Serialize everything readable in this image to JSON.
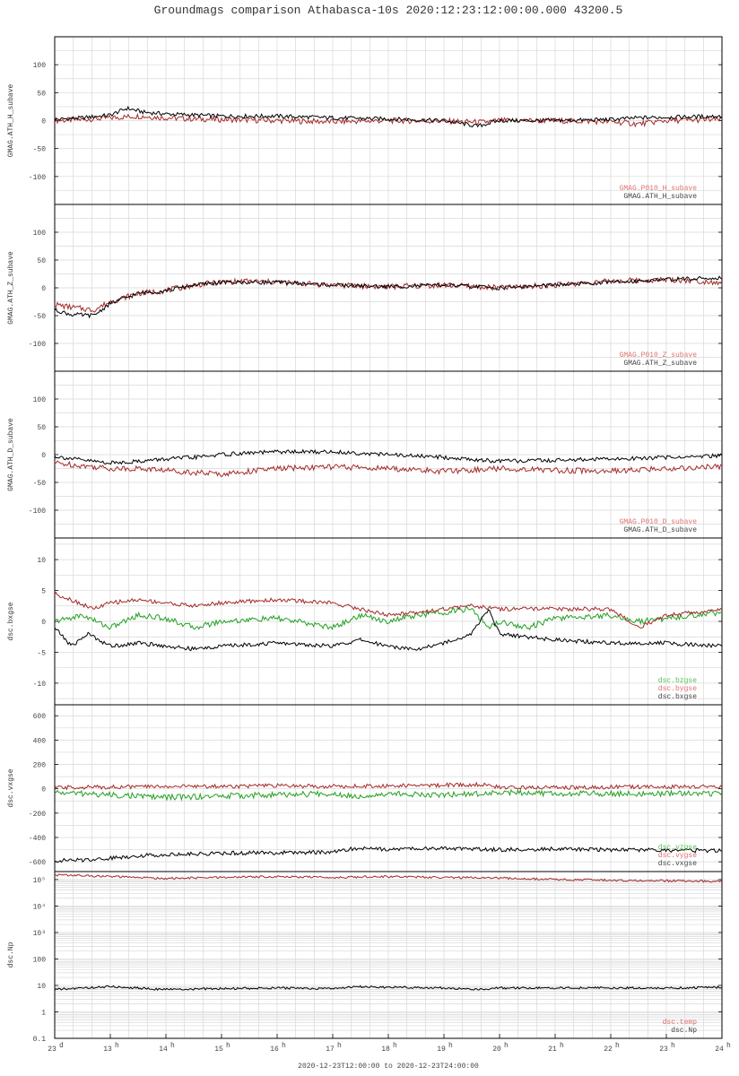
{
  "figure": {
    "title": "Groundmags comparison Athabasca-10s 2020:12:23:12:00:00.000 43200.5",
    "x_range_label": "2020-12-23T12:00:00 to 2020-12-23T24:00:00",
    "x_tick_labels": [
      "23",
      "13",
      "14",
      "15",
      "16",
      "17",
      "18",
      "19",
      "20",
      "21",
      "22",
      "23",
      "24"
    ],
    "x_tick_superscripts": [
      "d",
      "h",
      "h",
      "h",
      "h",
      "h",
      "h",
      "h",
      "h",
      "h",
      "h",
      "h",
      "h"
    ]
  },
  "colors": {
    "black": "#000000",
    "red": "#a52a2a",
    "green": "#22a022",
    "legend_red": "#e07070",
    "legend_green": "#55c055",
    "legend_gray": "#444444",
    "grid": "#d8d8d8"
  },
  "chart_data": [
    {
      "type": "line",
      "ylabel": "GMAG.ATH_H_subave",
      "x_hours": [
        12,
        24
      ],
      "ylim": [
        -150,
        150
      ],
      "yticks": [
        100,
        50,
        0,
        -50,
        -100
      ],
      "ytick_labels": [
        "100",
        "50",
        "0",
        "-50",
        "-100"
      ],
      "series": [
        {
          "name": "GMAG.P010_H_subave",
          "color": "red",
          "x": [
            12,
            12.5,
            13,
            13.5,
            14,
            14.5,
            15,
            16,
            17,
            18,
            19,
            19.7,
            20,
            21,
            22,
            22.5,
            23,
            24
          ],
          "y": [
            0,
            2,
            5,
            8,
            5,
            3,
            2,
            0,
            -2,
            0,
            -1,
            -3,
            0,
            0,
            -2,
            -6,
            0,
            2
          ]
        },
        {
          "name": "GMAG.ATH_H_subave",
          "color": "black",
          "x": [
            12,
            12.5,
            13,
            13.3,
            13.6,
            14,
            14.5,
            15,
            16,
            17,
            18,
            19,
            19.6,
            20,
            21,
            22,
            22.5,
            23,
            24
          ],
          "y": [
            2,
            5,
            10,
            22,
            15,
            12,
            10,
            8,
            8,
            5,
            3,
            0,
            -10,
            0,
            0,
            2,
            5,
            6,
            8
          ]
        }
      ],
      "legend": [
        "GMAG.P010_H_subave",
        "GMAG.ATH_H_subave"
      ]
    },
    {
      "type": "line",
      "ylabel": "GMAG.ATH_Z_subave",
      "x_hours": [
        12,
        24
      ],
      "ylim": [
        -150,
        150
      ],
      "yticks": [
        100,
        50,
        0,
        -50,
        -100
      ],
      "ytick_labels": [
        "100",
        "50",
        "0",
        "-50",
        "-100"
      ],
      "series": [
        {
          "name": "GMAG.P010_Z_subave",
          "color": "red",
          "x": [
            12,
            12.3,
            12.7,
            13,
            13.5,
            14,
            14.5,
            15,
            15.5,
            16,
            17,
            18,
            19,
            20,
            21,
            22,
            23,
            24
          ],
          "y": [
            -30,
            -35,
            -40,
            -25,
            -10,
            -5,
            5,
            10,
            12,
            10,
            5,
            2,
            5,
            0,
            5,
            12,
            15,
            10
          ]
        },
        {
          "name": "GMAG.ATH_Z_subave",
          "color": "black",
          "x": [
            12,
            12.3,
            12.7,
            13,
            13.5,
            14,
            14.5,
            15,
            15.5,
            16,
            17,
            18,
            19,
            20,
            21,
            22,
            23,
            24
          ],
          "y": [
            -40,
            -48,
            -50,
            -28,
            -10,
            -5,
            5,
            10,
            10,
            10,
            5,
            2,
            5,
            0,
            5,
            10,
            15,
            18
          ]
        }
      ],
      "legend": [
        "GMAG.P010_Z_subave",
        "GMAG.ATH_Z_subave"
      ]
    },
    {
      "type": "line",
      "ylabel": "GMAG.ATH_D_subave",
      "x_hours": [
        12,
        24
      ],
      "ylim": [
        -150,
        150
      ],
      "yticks": [
        100,
        50,
        0,
        -50,
        -100
      ],
      "ytick_labels": [
        "100",
        "50",
        "0",
        "-50",
        "-100"
      ],
      "series": [
        {
          "name": "GMAG.P010_D_subave",
          "color": "red",
          "x": [
            12,
            12.5,
            13,
            13.5,
            14,
            14.5,
            15,
            15.5,
            16,
            17,
            18,
            19,
            20,
            21,
            22,
            23,
            24
          ],
          "y": [
            -15,
            -20,
            -25,
            -25,
            -28,
            -32,
            -35,
            -30,
            -25,
            -22,
            -25,
            -30,
            -25,
            -28,
            -30,
            -25,
            -22
          ]
        },
        {
          "name": "GMAG.ATH_D_subave",
          "color": "black",
          "x": [
            12,
            12.5,
            13,
            13.5,
            14,
            14.5,
            15,
            15.5,
            16,
            17,
            18,
            19,
            19.7,
            20,
            21,
            22,
            23,
            24
          ],
          "y": [
            -3,
            -10,
            -15,
            -12,
            -8,
            -5,
            0,
            3,
            5,
            5,
            0,
            -5,
            -10,
            -12,
            -10,
            -8,
            -5,
            -2
          ]
        }
      ],
      "legend": [
        "GMAG.P010_D_subave",
        "GMAG.ATH_D_subave"
      ]
    },
    {
      "type": "line",
      "ylabel": "dsc.bxgse",
      "x_hours": [
        12,
        24
      ],
      "ylim": [
        -13.5,
        13.5
      ],
      "yticks": [
        10,
        5,
        0,
        -5,
        -10
      ],
      "ytick_labels": [
        "10",
        "5",
        "0",
        "-5",
        "-10"
      ],
      "series": [
        {
          "name": "dsc.bzgse",
          "color": "green",
          "x": [
            12,
            12.5,
            13,
            13.5,
            14,
            14.5,
            15,
            16,
            17,
            17.5,
            18,
            18.5,
            19,
            19.5,
            19.8,
            20,
            20.5,
            21,
            22,
            22.5,
            23,
            24
          ],
          "y": [
            0,
            1,
            -1,
            1,
            0.5,
            -1,
            0,
            0.5,
            -1,
            1,
            0,
            1,
            1.5,
            2,
            -1,
            0,
            -1,
            0.5,
            1,
            0,
            0.5,
            1.5
          ]
        },
        {
          "name": "dsc.bygse",
          "color": "red",
          "x": [
            12,
            12.3,
            12.7,
            13,
            13.5,
            14,
            14.5,
            15,
            16,
            17,
            17.5,
            18,
            18.5,
            19,
            19.5,
            20,
            21,
            22,
            22.5,
            23,
            24
          ],
          "y": [
            4.5,
            3.5,
            2,
            3,
            3.5,
            3,
            2.5,
            3,
            3.5,
            3,
            2,
            1,
            1.5,
            2,
            2.5,
            2,
            2,
            2,
            -1,
            1,
            2
          ]
        },
        {
          "name": "dsc.bxgse",
          "color": "black",
          "x": [
            12,
            12.3,
            12.6,
            13,
            13.5,
            14,
            14.5,
            15,
            16,
            17,
            17.5,
            18,
            18.5,
            19,
            19.5,
            19.8,
            20,
            21,
            22,
            23,
            24
          ],
          "y": [
            -1,
            -4,
            -2,
            -4,
            -3.5,
            -4,
            -4.5,
            -4,
            -3.5,
            -4,
            -3,
            -4,
            -4.5,
            -3.5,
            -2,
            2,
            -2,
            -3,
            -3.5,
            -3.5,
            -4
          ]
        }
      ],
      "legend": [
        "dsc.bzgse",
        "dsc.bygse",
        "dsc.bxgse"
      ]
    },
    {
      "type": "line",
      "ylabel": "dsc.vxgse",
      "x_hours": [
        12,
        24
      ],
      "ylim": [
        -680,
        690
      ],
      "yticks": [
        600,
        400,
        200,
        0,
        -200,
        -400,
        -600
      ],
      "ytick_labels": [
        "600",
        "400",
        "200",
        "0",
        "-200",
        "-400",
        "-600"
      ],
      "series": [
        {
          "name": "dsc.vzgse",
          "color": "green",
          "x": [
            12,
            13,
            14,
            15,
            16,
            17,
            17.4,
            18,
            19,
            19.7,
            20,
            21,
            22,
            23,
            24
          ],
          "y": [
            -30,
            -50,
            -70,
            -60,
            -50,
            -40,
            -60,
            -40,
            -50,
            -40,
            -30,
            -40,
            -40,
            -40,
            -40
          ]
        },
        {
          "name": "dsc.vygse",
          "color": "red",
          "x": [
            12,
            13,
            14,
            15,
            16,
            17,
            18,
            19,
            19.7,
            20,
            21,
            22,
            23,
            24
          ],
          "y": [
            10,
            15,
            20,
            20,
            25,
            20,
            25,
            30,
            35,
            10,
            10,
            15,
            15,
            20
          ]
        },
        {
          "name": "dsc.vxgse",
          "color": "black",
          "x": [
            12,
            12.5,
            13,
            13.5,
            14,
            15,
            16,
            17,
            17.4,
            18,
            19,
            20,
            21,
            22,
            23,
            24
          ],
          "y": [
            -590,
            -585,
            -570,
            -550,
            -540,
            -530,
            -525,
            -520,
            -490,
            -495,
            -490,
            -500,
            -495,
            -500,
            -505,
            -510
          ]
        }
      ],
      "legend": [
        "dsc.vzgse",
        "dsc.vygse",
        "dsc.vxgse"
      ]
    },
    {
      "type": "line",
      "ylabel": "dsc.Np",
      "x_hours": [
        12,
        24
      ],
      "y_scale": "log",
      "ylim": [
        0.1,
        200000
      ],
      "yticks": [
        100000,
        10000,
        1000,
        100,
        10,
        1,
        0.1
      ],
      "ytick_labels": [
        "10⁵",
        "10⁴",
        "10³",
        "100",
        "10",
        "1",
        "0.1"
      ],
      "series": [
        {
          "name": "dsc.temp",
          "color": "red",
          "x": [
            12,
            13,
            14,
            15,
            16,
            17,
            18,
            19,
            20,
            21,
            22,
            23,
            24
          ],
          "y": [
            150000,
            130000,
            110000,
            120000,
            130000,
            120000,
            130000,
            120000,
            115000,
            100000,
            95000,
            90000,
            85000
          ]
        },
        {
          "name": "dsc.Np",
          "color": "black",
          "x": [
            12,
            13,
            14,
            15,
            16,
            17,
            17.4,
            18,
            19,
            19.7,
            20,
            21,
            22,
            23,
            24
          ],
          "y": [
            7,
            9,
            7,
            7.5,
            8,
            7.5,
            9,
            8.5,
            8,
            7,
            8,
            8,
            8,
            8,
            8.5
          ]
        }
      ],
      "legend": [
        "dsc.temp",
        "dsc.Np"
      ]
    }
  ]
}
